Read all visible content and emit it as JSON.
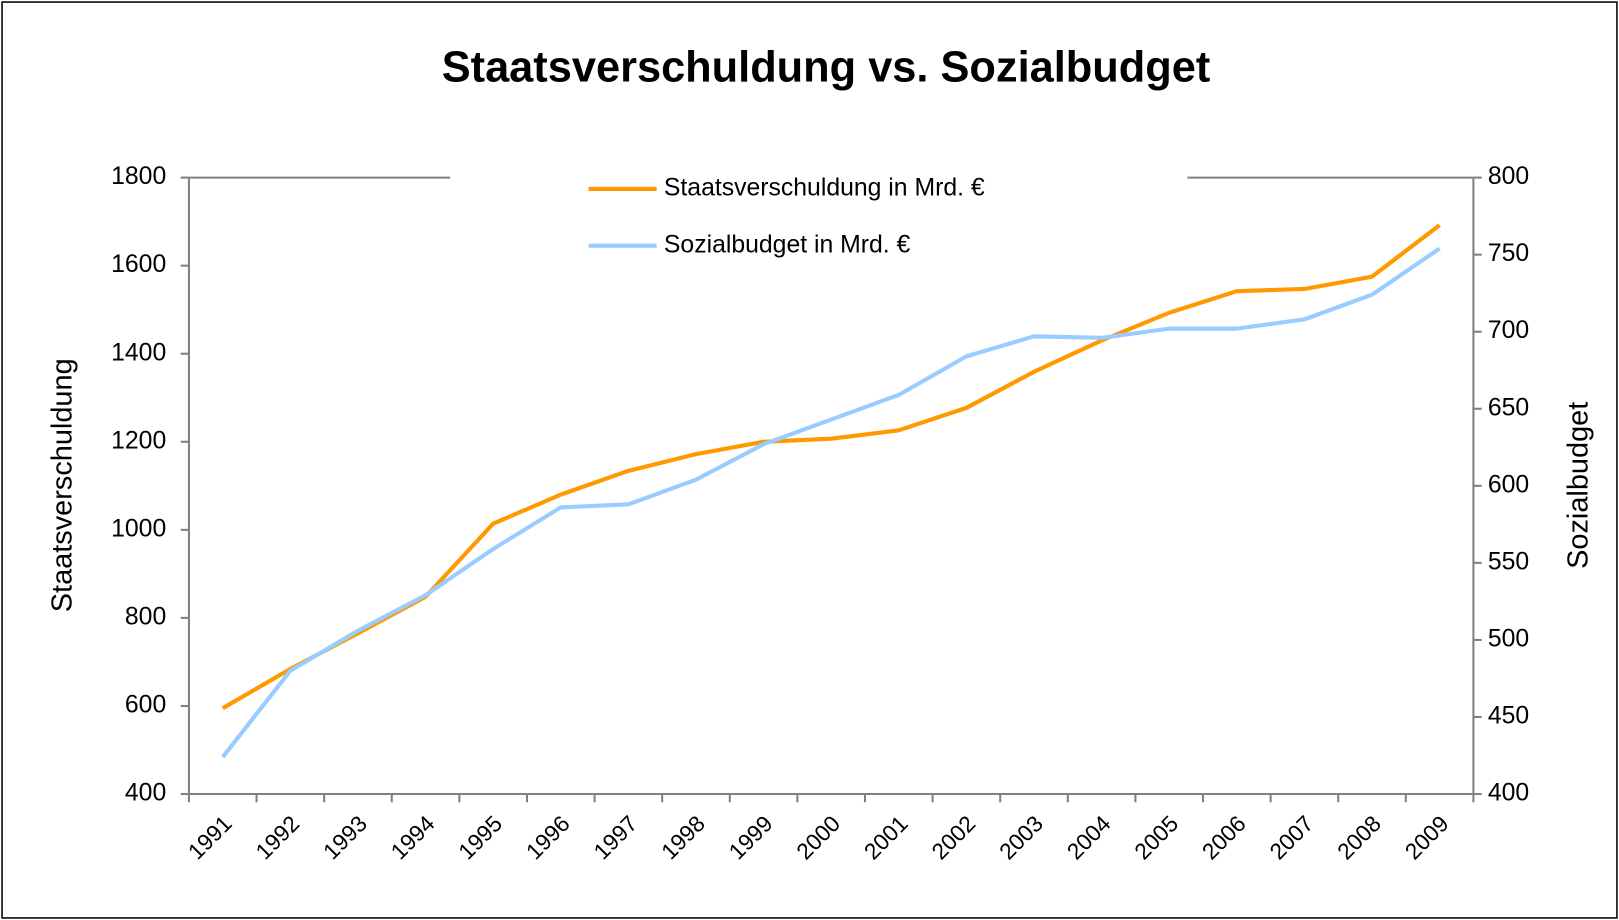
{
  "chart_data": {
    "type": "line",
    "title": "Staatsverschuldung vs. Sozialbudget",
    "categories": [
      "1991",
      "1992",
      "1993",
      "1994",
      "1995",
      "1996",
      "1997",
      "1998",
      "1999",
      "2000",
      "2001",
      "2002",
      "2003",
      "2004",
      "2005",
      "2006",
      "2007",
      "2008",
      "2009"
    ],
    "series": [
      {
        "name": "Staatsverschuldung in Mrd. €",
        "color": "#ff9900",
        "axis": "y",
        "values": [
          595,
          684,
          765,
          848,
          1014,
          1080,
          1134,
          1172,
          1200,
          1207,
          1226,
          1277,
          1359,
          1430,
          1493,
          1542,
          1547,
          1575,
          1692
        ]
      },
      {
        "name": "Sozialbudget in Mrd. €",
        "color": "#99ccff",
        "axis": "y2",
        "values": [
          424,
          480,
          506,
          529,
          559,
          586,
          588,
          604,
          627,
          643,
          659,
          684,
          697,
          696,
          702,
          702,
          708,
          724,
          754
        ]
      }
    ],
    "ylabel": "Staatsverschuldung",
    "y2label": "Sozialbudget",
    "ylim": [
      400,
      1800
    ],
    "yticks": [
      400,
      600,
      800,
      1000,
      1200,
      1400,
      1600,
      1800
    ],
    "y2lim": [
      400,
      800
    ],
    "y2ticks": [
      400,
      450,
      500,
      550,
      600,
      650,
      700,
      750,
      800
    ],
    "legend": "top"
  }
}
